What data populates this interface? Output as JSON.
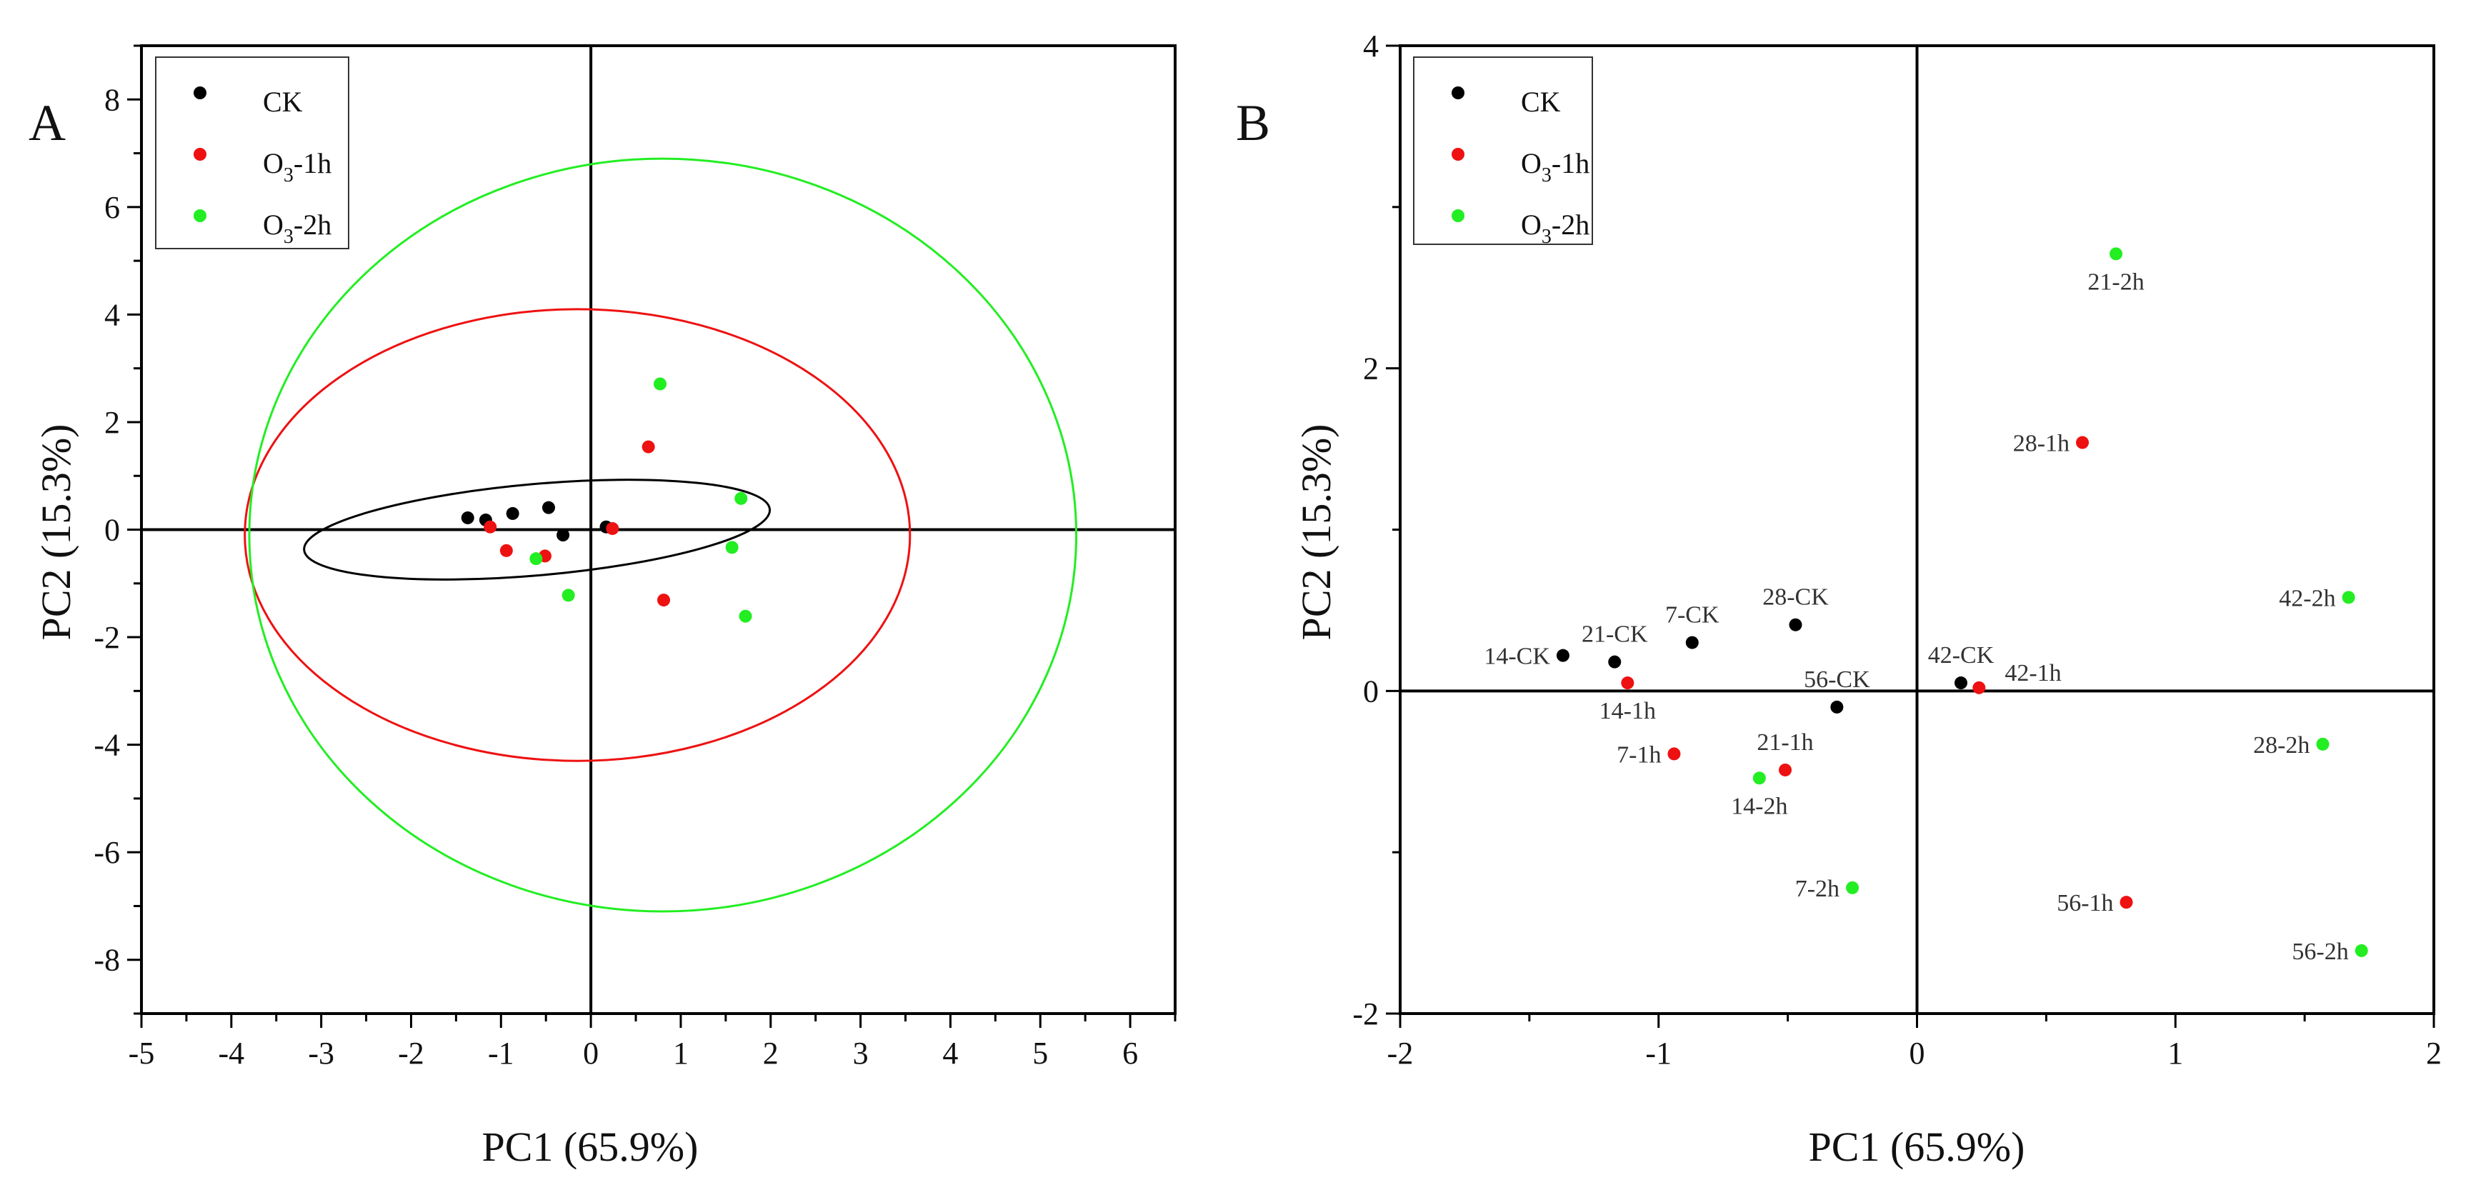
{
  "colors": {
    "CK": "#000000",
    "O3-1h": "#ee1111",
    "O3-2h": "#22ee22",
    "axis": "#000000"
  },
  "chart_data": [
    {
      "type": "scatter",
      "panel": "A",
      "xlabel": "PC1 (65.9%)",
      "ylabel": "PC2 (15.3%)",
      "xlim": [
        -5,
        6.5
      ],
      "ylim": [
        -9,
        9
      ],
      "xticks": [
        -5,
        -4,
        -3,
        -2,
        -1,
        0,
        1,
        2,
        3,
        4,
        5,
        6
      ],
      "yticks": [
        -8,
        -6,
        -4,
        -2,
        0,
        2,
        4,
        6,
        8
      ],
      "legend_placement": "top-left",
      "legend": [
        {
          "key": "CK",
          "base": "CK",
          "sub": "",
          "tail": ""
        },
        {
          "key": "O3-1h",
          "base": "O",
          "sub": "3",
          "tail": "-1h"
        },
        {
          "key": "O3-2h",
          "base": "O",
          "sub": "3",
          "tail": "-2h"
        }
      ],
      "series": [
        {
          "name": "CK",
          "key": "CK",
          "points": [
            {
              "x": -1.37,
              "y": 0.22
            },
            {
              "x": -1.17,
              "y": 0.18
            },
            {
              "x": -0.87,
              "y": 0.3
            },
            {
              "x": -0.47,
              "y": 0.41
            },
            {
              "x": -0.31,
              "y": -0.1
            },
            {
              "x": 0.17,
              "y": 0.05
            }
          ]
        },
        {
          "name": "O3-1h",
          "key": "O3-1h",
          "points": [
            {
              "x": -1.12,
              "y": 0.05
            },
            {
              "x": -0.94,
              "y": -0.39
            },
            {
              "x": -0.51,
              "y": -0.49
            },
            {
              "x": 0.24,
              "y": 0.02
            },
            {
              "x": 0.64,
              "y": 1.54
            },
            {
              "x": 0.81,
              "y": -1.31
            }
          ]
        },
        {
          "name": "O3-2h",
          "key": "O3-2h",
          "points": [
            {
              "x": -0.61,
              "y": -0.54
            },
            {
              "x": -0.25,
              "y": -1.22
            },
            {
              "x": 0.77,
              "y": 2.71
            },
            {
              "x": 1.57,
              "y": -0.33
            },
            {
              "x": 1.67,
              "y": 0.58
            },
            {
              "x": 1.72,
              "y": -1.61
            }
          ]
        }
      ],
      "ellipses": [
        {
          "key": "CK",
          "cx": -0.6,
          "cy": 0.0,
          "rx": 2.6,
          "ry": 0.85,
          "angle_deg": -5
        },
        {
          "key": "O3-1h",
          "cx": -0.15,
          "cy": -0.1,
          "rx": 3.7,
          "ry": 4.2,
          "angle_deg": 0
        },
        {
          "key": "O3-2h",
          "cx": 0.8,
          "cy": -0.1,
          "rx": 4.6,
          "ry": 7.0,
          "angle_deg": 0
        }
      ]
    },
    {
      "type": "scatter",
      "panel": "B",
      "xlabel": "PC1 (65.9%)",
      "ylabel": "PC2 (15.3%)",
      "xlim": [
        -2,
        2
      ],
      "ylim": [
        -2,
        4
      ],
      "xticks": [
        -2,
        -1,
        0,
        1,
        2
      ],
      "yticks": [
        -2,
        0,
        2,
        4
      ],
      "legend_placement": "top-left",
      "legend": [
        {
          "key": "CK",
          "base": "CK",
          "sub": "",
          "tail": ""
        },
        {
          "key": "O3-1h",
          "base": "O",
          "sub": "3",
          "tail": "-1h"
        },
        {
          "key": "O3-2h",
          "base": "O",
          "sub": "3",
          "tail": "-2h"
        }
      ],
      "series": [
        {
          "name": "CK",
          "key": "CK",
          "points": [
            {
              "x": -1.37,
              "y": 0.22,
              "label": "14-CK",
              "pos": "left"
            },
            {
              "x": -1.17,
              "y": 0.18,
              "label": "21-CK",
              "pos": "above"
            },
            {
              "x": -0.87,
              "y": 0.3,
              "label": "7-CK",
              "pos": "above"
            },
            {
              "x": -0.47,
              "y": 0.41,
              "label": "28-CK",
              "pos": "above"
            },
            {
              "x": -0.31,
              "y": -0.1,
              "label": "56-CK",
              "pos": "above"
            },
            {
              "x": 0.17,
              "y": 0.05,
              "label": "42-CK",
              "pos": "above"
            }
          ]
        },
        {
          "name": "O3-1h",
          "key": "O3-1h",
          "points": [
            {
              "x": -1.12,
              "y": 0.05,
              "label": "14-1h",
              "pos": "below"
            },
            {
              "x": -0.94,
              "y": -0.39,
              "label": "7-1h",
              "pos": "left"
            },
            {
              "x": -0.51,
              "y": -0.49,
              "label": "21-1h",
              "pos": "above"
            },
            {
              "x": 0.24,
              "y": 0.02,
              "label": "42-1h",
              "pos": "right"
            },
            {
              "x": 0.64,
              "y": 1.54,
              "label": "28-1h",
              "pos": "left"
            },
            {
              "x": 0.81,
              "y": -1.31,
              "label": "56-1h",
              "pos": "left"
            }
          ]
        },
        {
          "name": "O3-2h",
          "key": "O3-2h",
          "points": [
            {
              "x": -0.61,
              "y": -0.54,
              "label": "14-2h",
              "pos": "below"
            },
            {
              "x": -0.25,
              "y": -1.22,
              "label": "7-2h",
              "pos": "left"
            },
            {
              "x": 0.77,
              "y": 2.71,
              "label": "21-2h",
              "pos": "below"
            },
            {
              "x": 1.57,
              "y": -0.33,
              "label": "28-2h",
              "pos": "left"
            },
            {
              "x": 1.67,
              "y": 0.58,
              "label": "42-2h",
              "pos": "left"
            },
            {
              "x": 1.72,
              "y": -1.61,
              "label": "56-2h",
              "pos": "left"
            }
          ]
        }
      ]
    }
  ]
}
